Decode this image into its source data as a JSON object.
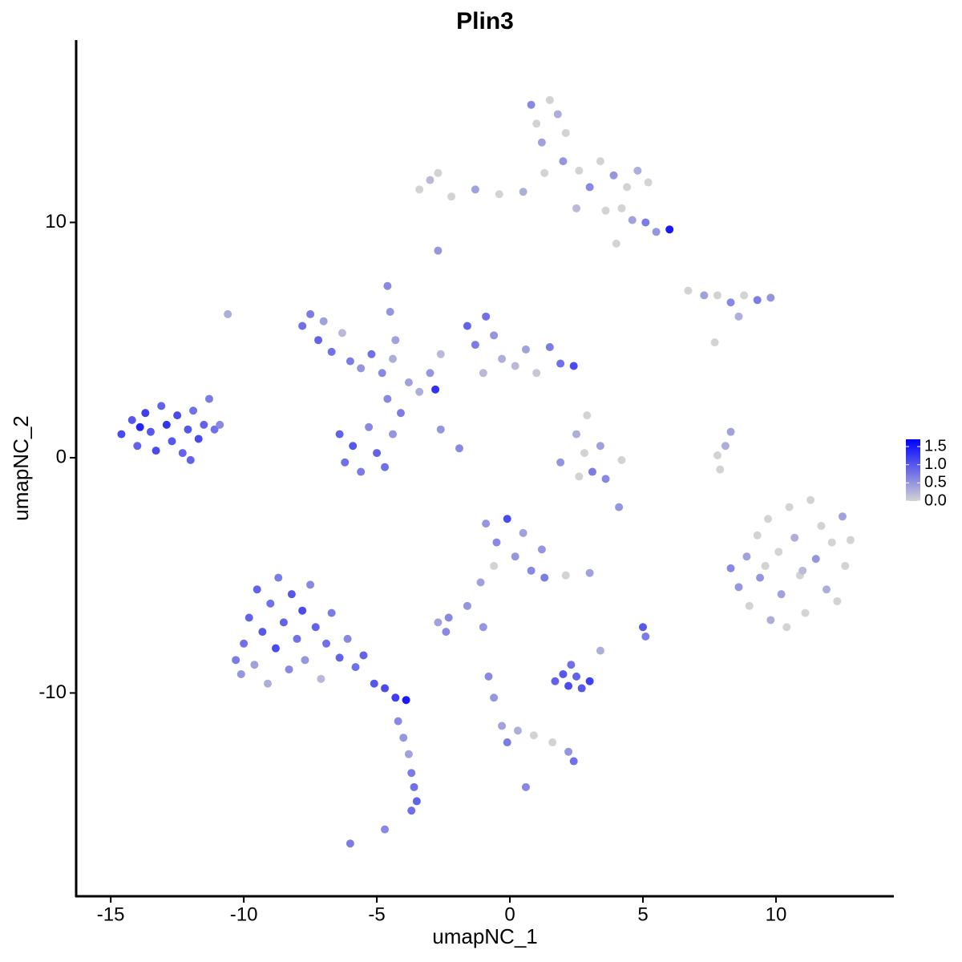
{
  "chart_data": {
    "type": "scatter",
    "title": "Plin3",
    "x_label": "umapNC_1",
    "y_label": "umapNC_2",
    "xlim": [
      -16.3,
      14.43
    ],
    "ylim": [
      -18.64,
      17.75
    ],
    "xticks": [
      -15,
      -10,
      -5,
      0,
      5,
      10
    ],
    "yticks": [
      -10,
      0,
      10
    ],
    "color_low": "#d3d3d3",
    "color_high": "#0000ff",
    "colorbar_lim": [
      0,
      1.7
    ],
    "colorbar_ticks": [
      {
        "value": 0,
        "label": "0.0"
      },
      0.5,
      {
        "value": 1,
        "label": "1.0"
      },
      1.5
    ],
    "x": [
      -14.6,
      -14.2,
      -14.0,
      -13.7,
      -13.5,
      -13.3,
      -13.1,
      -12.9,
      -12.7,
      -12.5,
      -12.3,
      -12.1,
      -11.9,
      -11.7,
      -11.5,
      -11.3,
      -11.1,
      -12.0,
      -13.9,
      -10.9,
      -10.6,
      -10.3,
      -10.1,
      -10.0,
      -9.8,
      -9.6,
      -9.5,
      -9.3,
      -9.1,
      -9.0,
      -8.8,
      -8.7,
      -8.5,
      -8.3,
      -8.2,
      -8.0,
      -7.8,
      -7.7,
      -7.5,
      -7.3,
      -7.1,
      -6.9,
      -6.7,
      -6.4,
      -6.1,
      -5.8,
      -5.5,
      -5.1,
      -4.7,
      -4.3,
      -3.9,
      -4.2,
      -4.0,
      -3.8,
      -3.7,
      -3.6,
      -3.5,
      -3.7,
      -6.0,
      -4.7,
      -7.8,
      -7.5,
      -7.2,
      -7.0,
      -6.7,
      -6.3,
      -6.0,
      -5.6,
      -5.2,
      -4.8,
      -4.4,
      -4.6,
      -4.5,
      -4.3,
      -6.4,
      -6.2,
      -5.9,
      -5.6,
      -5.3,
      -5.0,
      -4.7,
      -4.4,
      -4.1,
      -4.6,
      -3.8,
      -3.4,
      -3.0,
      -2.6,
      -2.8,
      -2.6,
      -1.9,
      -1.6,
      -1.3,
      -0.9,
      -0.6,
      -0.3,
      0.2,
      0.6,
      1.0,
      1.5,
      1.9,
      2.4,
      -1.0,
      0.8,
      1.0,
      1.2,
      1.5,
      1.8,
      2.1,
      2.0,
      1.3,
      0.5,
      -0.4,
      -1.3,
      -2.2,
      -3.0,
      -3.4,
      -2.7,
      2.6,
      3.0,
      3.4,
      3.9,
      4.4,
      4.8,
      5.2,
      4.2,
      4.6,
      5.1,
      5.5,
      6.0,
      4.0,
      3.6,
      2.5,
      -2.7,
      6.7,
      7.3,
      7.8,
      8.3,
      8.8,
      9.3,
      9.8,
      8.6,
      7.7,
      1.9,
      2.5,
      2.8,
      3.1,
      3.4,
      3.6,
      4.2,
      2.6,
      4.1,
      2.9,
      7.9,
      8.1,
      8.3,
      7.8,
      8.3,
      8.6,
      8.9,
      9.0,
      9.3,
      9.4,
      9.7,
      9.8,
      10.1,
      10.2,
      10.5,
      10.7,
      10.9,
      11.1,
      11.3,
      11.5,
      11.7,
      11.9,
      12.1,
      12.3,
      12.5,
      12.6,
      12.8,
      10.4,
      9.6,
      11.0,
      -0.9,
      -0.5,
      -0.1,
      0.2,
      0.5,
      0.8,
      1.2,
      1.3,
      -0.6,
      -1.1,
      -1.6,
      -2.3,
      -2.7,
      -2.4,
      -1.0,
      2.1,
      3.0,
      1.7,
      2.0,
      2.2,
      2.5,
      2.7,
      3.0,
      2.3,
      3.4,
      5.0,
      5.1,
      -0.8,
      -0.6,
      -0.3,
      -0.1,
      0.3,
      0.9,
      1.6,
      2.2,
      2.4,
      0.6
    ],
    "y": [
      1.0,
      1.6,
      0.5,
      1.9,
      1.1,
      0.3,
      2.2,
      1.4,
      0.7,
      1.8,
      0.2,
      1.2,
      2.0,
      0.8,
      1.4,
      2.5,
      1.2,
      -0.1,
      1.3,
      1.4,
      6.1,
      -8.6,
      -9.2,
      -7.9,
      -6.8,
      -8.8,
      -5.6,
      -7.4,
      -9.6,
      -6.2,
      -8.1,
      -5.1,
      -7.0,
      -9.0,
      -5.8,
      -7.7,
      -6.5,
      -8.6,
      -5.4,
      -7.2,
      -9.4,
      -7.9,
      -6.6,
      -8.5,
      -7.7,
      -8.9,
      -8.4,
      -9.6,
      -9.8,
      -10.2,
      -10.3,
      -11.2,
      -11.9,
      -12.6,
      -13.4,
      -14.0,
      -14.6,
      -15.0,
      -16.4,
      -15.8,
      5.6,
      6.1,
      5.0,
      5.8,
      4.5,
      5.3,
      4.1,
      3.8,
      4.4,
      3.6,
      4.2,
      7.3,
      6.2,
      5.0,
      1.0,
      -0.2,
      0.5,
      -0.6,
      1.3,
      0.2,
      -0.4,
      1.0,
      1.9,
      2.5,
      3.2,
      2.8,
      3.6,
      4.4,
      2.9,
      1.2,
      0.4,
      5.6,
      4.8,
      6.0,
      5.2,
      4.2,
      3.9,
      4.6,
      3.6,
      4.7,
      4.0,
      3.9,
      3.6,
      15.0,
      14.2,
      13.4,
      15.2,
      14.6,
      13.8,
      12.6,
      12.1,
      11.3,
      11.2,
      11.4,
      11.1,
      11.8,
      11.4,
      12.1,
      12.2,
      11.5,
      12.6,
      12.0,
      11.5,
      12.2,
      11.7,
      10.6,
      10.1,
      10.0,
      9.6,
      9.7,
      9.1,
      10.5,
      10.6,
      8.8,
      7.1,
      6.9,
      6.9,
      6.6,
      6.9,
      6.7,
      6.8,
      6.0,
      4.9,
      -0.2,
      1.0,
      0.2,
      -0.6,
      0.5,
      -0.9,
      -0.1,
      -0.8,
      -2.1,
      1.8,
      -0.5,
      0.5,
      1.1,
      0.1,
      -4.7,
      -5.5,
      -4.2,
      -6.3,
      -3.3,
      -5.1,
      -2.6,
      -6.9,
      -4.0,
      -5.8,
      -2.1,
      -3.4,
      -5.0,
      -6.6,
      -1.8,
      -4.3,
      -2.9,
      -5.6,
      -3.6,
      -6.1,
      -2.5,
      -4.6,
      -3.5,
      -7.2,
      -4.6,
      -4.8,
      -2.8,
      -3.6,
      -2.6,
      -4.2,
      -3.2,
      -4.8,
      -3.9,
      -5.1,
      -4.6,
      -5.3,
      -6.3,
      -6.8,
      -7.0,
      -7.4,
      -7.2,
      -5.0,
      -4.9,
      -9.5,
      -9.2,
      -9.7,
      -9.3,
      -9.8,
      -9.5,
      -8.8,
      -8.2,
      -7.2,
      -7.6,
      -9.3,
      -10.2,
      -11.4,
      -12.1,
      -11.6,
      -11.8,
      -12.1,
      -12.5,
      -12.9,
      -14.0
    ],
    "values": [
      1.1,
      1.0,
      0.9,
      1.2,
      1.0,
      1.1,
      0.9,
      1.3,
      1.0,
      1.1,
      0.9,
      1.0,
      0.8,
      1.1,
      0.9,
      0.7,
      0.8,
      0.9,
      1.4,
      0.6,
      0.3,
      0.7,
      0.5,
      0.8,
      0.9,
      0.4,
      0.9,
      1.0,
      0.3,
      0.8,
      1.1,
      0.7,
      0.9,
      0.6,
      1.0,
      0.8,
      1.1,
      0.5,
      0.6,
      0.9,
      0.2,
      0.8,
      0.7,
      0.9,
      0.6,
      0.8,
      0.9,
      1.0,
      1.1,
      1.2,
      1.5,
      0.6,
      0.5,
      0.4,
      0.7,
      0.8,
      0.9,
      0.8,
      0.7,
      0.6,
      0.8,
      0.7,
      0.9,
      0.4,
      0.8,
      0.2,
      0.7,
      0.5,
      0.8,
      0.6,
      0.3,
      0.6,
      0.5,
      0.4,
      0.9,
      0.8,
      1.0,
      0.7,
      0.6,
      0.9,
      0.8,
      0.5,
      0.7,
      0.6,
      0.4,
      0.3,
      0.5,
      0.2,
      1.3,
      0.5,
      0.6,
      0.9,
      0.7,
      0.8,
      0.5,
      0.3,
      0.2,
      0.4,
      0.1,
      0.7,
      0.8,
      1.1,
      0.2,
      0.6,
      0.0,
      0.4,
      0.0,
      0.3,
      0.0,
      0.5,
      0.0,
      0.3,
      0.0,
      0.4,
      0.0,
      0.2,
      0.0,
      0.0,
      0.0,
      0.6,
      0.0,
      0.5,
      0.0,
      0.3,
      0.0,
      0.0,
      0.4,
      0.7,
      0.5,
      1.5,
      0.0,
      0.0,
      0.2,
      0.5,
      0.0,
      0.4,
      0.0,
      0.6,
      0.0,
      0.7,
      0.5,
      0.3,
      0.0,
      0.5,
      0.3,
      0.0,
      0.7,
      0.4,
      0.6,
      0.0,
      0.0,
      0.5,
      0.0,
      0.0,
      0.3,
      0.4,
      0.0,
      0.6,
      0.5,
      0.4,
      0.0,
      0.0,
      0.5,
      0.0,
      0.3,
      0.0,
      0.4,
      0.0,
      0.3,
      0.0,
      0.0,
      0.0,
      0.5,
      0.0,
      0.3,
      0.0,
      0.0,
      0.4,
      0.0,
      0.0,
      0.0,
      0.0,
      0.2,
      0.5,
      0.6,
      1.1,
      0.5,
      0.4,
      0.6,
      0.5,
      0.7,
      0.0,
      0.4,
      0.5,
      0.6,
      0.4,
      0.6,
      0.5,
      0.0,
      0.4,
      0.9,
      1.0,
      1.1,
      0.9,
      1.0,
      1.2,
      0.8,
      0.3,
      1.0,
      0.7,
      0.6,
      0.5,
      0.4,
      0.7,
      0.3,
      0.0,
      0.0,
      0.5,
      0.8,
      0.6
    ]
  }
}
